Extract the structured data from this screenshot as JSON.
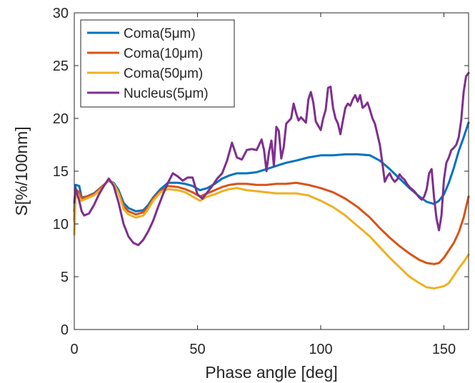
{
  "chart_data": {
    "type": "line",
    "title": "",
    "xlabel": "Phase angle [deg]",
    "ylabel": "S[%/100nm]",
    "xlim": [
      0,
      160
    ],
    "ylim": [
      0,
      30
    ],
    "xticks": [
      0,
      50,
      100,
      150
    ],
    "yticks": [
      0,
      5,
      10,
      15,
      20,
      25,
      30
    ],
    "xtick_labels": [
      "0",
      "50",
      "100",
      "150"
    ],
    "ytick_labels": [
      "0",
      "5",
      "10",
      "15",
      "20",
      "25",
      "30"
    ],
    "grid": false,
    "legend_position": "top-left",
    "series": [
      {
        "name": "Coma(5μm)",
        "color": "#0072BD",
        "points": [
          [
            0,
            11.2
          ],
          [
            0.5,
            13.7
          ],
          [
            2,
            13.6
          ],
          [
            3,
            12.5
          ],
          [
            5,
            12.6
          ],
          [
            8,
            12.9
          ],
          [
            11,
            13.5
          ],
          [
            14,
            14.1
          ],
          [
            16,
            13.9
          ],
          [
            18,
            13.2
          ],
          [
            20,
            12.0
          ],
          [
            22,
            11.5
          ],
          [
            25,
            11.2
          ],
          [
            28,
            11.3
          ],
          [
            30,
            11.8
          ],
          [
            32,
            12.5
          ],
          [
            35,
            13.3
          ],
          [
            38,
            13.9
          ],
          [
            42,
            13.9
          ],
          [
            45,
            13.8
          ],
          [
            48,
            13.6
          ],
          [
            51,
            13.2
          ],
          [
            54,
            13.4
          ],
          [
            57,
            13.8
          ],
          [
            60,
            14.3
          ],
          [
            63,
            14.6
          ],
          [
            66,
            14.8
          ],
          [
            70,
            14.8
          ],
          [
            74,
            14.9
          ],
          [
            78,
            15.2
          ],
          [
            82,
            15.5
          ],
          [
            86,
            15.8
          ],
          [
            90,
            16.0
          ],
          [
            95,
            16.3
          ],
          [
            100,
            16.5
          ],
          [
            105,
            16.5
          ],
          [
            110,
            16.6
          ],
          [
            115,
            16.6
          ],
          [
            120,
            16.5
          ],
          [
            124,
            16.0
          ],
          [
            128,
            15.2
          ],
          [
            132,
            14.3
          ],
          [
            136,
            13.4
          ],
          [
            140,
            12.6
          ],
          [
            143,
            12.1
          ],
          [
            146,
            11.9
          ],
          [
            148,
            12.2
          ],
          [
            150,
            12.8
          ],
          [
            152,
            13.9
          ],
          [
            154,
            15.3
          ],
          [
            156,
            16.9
          ],
          [
            158,
            18.2
          ],
          [
            160,
            19.6
          ]
        ]
      },
      {
        "name": "Coma(10μm)",
        "color": "#D95319",
        "points": [
          [
            0,
            10.3
          ],
          [
            0.5,
            13.3
          ],
          [
            2,
            13.0
          ],
          [
            3,
            12.4
          ],
          [
            5,
            12.6
          ],
          [
            8,
            12.8
          ],
          [
            11,
            13.5
          ],
          [
            14,
            14.1
          ],
          [
            16,
            13.8
          ],
          [
            18,
            13.0
          ],
          [
            20,
            11.7
          ],
          [
            22,
            11.2
          ],
          [
            25,
            10.9
          ],
          [
            28,
            11.1
          ],
          [
            30,
            11.6
          ],
          [
            32,
            12.4
          ],
          [
            35,
            13.1
          ],
          [
            38,
            13.6
          ],
          [
            42,
            13.5
          ],
          [
            45,
            13.3
          ],
          [
            48,
            13.0
          ],
          [
            51,
            12.6
          ],
          [
            54,
            12.9
          ],
          [
            57,
            13.2
          ],
          [
            60,
            13.5
          ],
          [
            63,
            13.7
          ],
          [
            66,
            13.8
          ],
          [
            70,
            13.8
          ],
          [
            74,
            13.7
          ],
          [
            78,
            13.7
          ],
          [
            82,
            13.8
          ],
          [
            86,
            13.8
          ],
          [
            90,
            13.9
          ],
          [
            95,
            13.7
          ],
          [
            100,
            13.4
          ],
          [
            105,
            13.0
          ],
          [
            110,
            12.4
          ],
          [
            115,
            11.6
          ],
          [
            120,
            10.6
          ],
          [
            124,
            9.6
          ],
          [
            128,
            8.7
          ],
          [
            132,
            7.9
          ],
          [
            136,
            7.2
          ],
          [
            140,
            6.6
          ],
          [
            143,
            6.3
          ],
          [
            146,
            6.2
          ],
          [
            148,
            6.3
          ],
          [
            150,
            6.8
          ],
          [
            152,
            7.5
          ],
          [
            154,
            8.2
          ],
          [
            156,
            9.2
          ],
          [
            158,
            10.6
          ],
          [
            160,
            12.6
          ]
        ]
      },
      {
        "name": "Coma(50μm)",
        "color": "#EDB120",
        "points": [
          [
            0,
            9.0
          ],
          [
            0.5,
            12.6
          ],
          [
            2,
            12.5
          ],
          [
            3,
            12.2
          ],
          [
            5,
            12.4
          ],
          [
            8,
            12.7
          ],
          [
            11,
            13.3
          ],
          [
            14,
            14.2
          ],
          [
            16,
            13.8
          ],
          [
            18,
            12.9
          ],
          [
            20,
            11.4
          ],
          [
            22,
            10.9
          ],
          [
            25,
            10.6
          ],
          [
            28,
            10.8
          ],
          [
            30,
            11.4
          ],
          [
            32,
            12.2
          ],
          [
            35,
            13.0
          ],
          [
            38,
            13.3
          ],
          [
            42,
            13.2
          ],
          [
            45,
            13.0
          ],
          [
            48,
            12.6
          ],
          [
            51,
            12.2
          ],
          [
            54,
            12.6
          ],
          [
            57,
            12.8
          ],
          [
            60,
            13.1
          ],
          [
            63,
            13.3
          ],
          [
            66,
            13.4
          ],
          [
            70,
            13.2
          ],
          [
            74,
            13.1
          ],
          [
            78,
            13.0
          ],
          [
            82,
            12.9
          ],
          [
            86,
            12.9
          ],
          [
            90,
            12.9
          ],
          [
            95,
            12.7
          ],
          [
            100,
            12.2
          ],
          [
            105,
            11.6
          ],
          [
            110,
            10.8
          ],
          [
            115,
            9.8
          ],
          [
            120,
            8.8
          ],
          [
            124,
            7.8
          ],
          [
            128,
            6.8
          ],
          [
            132,
            5.9
          ],
          [
            136,
            5.0
          ],
          [
            140,
            4.4
          ],
          [
            143,
            4.0
          ],
          [
            146,
            3.9
          ],
          [
            148,
            4.0
          ],
          [
            150,
            4.1
          ],
          [
            152,
            4.4
          ],
          [
            154,
            5.1
          ],
          [
            156,
            5.8
          ],
          [
            158,
            6.4
          ],
          [
            160,
            7.1
          ]
        ]
      },
      {
        "name": "Nucleus(5μm)",
        "color": "#7E2F8E",
        "points": [
          [
            0,
            12.0
          ],
          [
            0.5,
            13.4
          ],
          [
            2,
            12.2
          ],
          [
            3,
            11.2
          ],
          [
            4,
            10.8
          ],
          [
            6,
            11.0
          ],
          [
            8,
            11.8
          ],
          [
            10,
            12.8
          ],
          [
            12,
            13.6
          ],
          [
            14,
            14.3
          ],
          [
            16,
            13.6
          ],
          [
            18,
            12.0
          ],
          [
            20,
            10.0
          ],
          [
            22,
            8.8
          ],
          [
            24,
            8.2
          ],
          [
            26,
            8.0
          ],
          [
            28,
            8.5
          ],
          [
            30,
            9.3
          ],
          [
            32,
            10.3
          ],
          [
            34,
            11.6
          ],
          [
            36,
            12.8
          ],
          [
            38,
            13.9
          ],
          [
            40,
            14.8
          ],
          [
            42,
            14.5
          ],
          [
            44,
            14.1
          ],
          [
            46,
            14.4
          ],
          [
            48,
            14.4
          ],
          [
            50,
            12.8
          ],
          [
            52,
            12.4
          ],
          [
            54,
            13.0
          ],
          [
            56,
            13.6
          ],
          [
            58,
            14.3
          ],
          [
            60,
            14.8
          ],
          [
            62,
            16.0
          ],
          [
            64,
            17.7
          ],
          [
            66,
            16.3
          ],
          [
            68,
            16.1
          ],
          [
            70,
            17.0
          ],
          [
            72,
            17.1
          ],
          [
            74,
            17.0
          ],
          [
            76,
            18.0
          ],
          [
            77,
            17.0
          ],
          [
            78,
            15.0
          ],
          [
            79,
            16.8
          ],
          [
            80,
            17.9
          ],
          [
            81,
            15.5
          ],
          [
            82,
            19.2
          ],
          [
            83,
            18.8
          ],
          [
            84,
            16.2
          ],
          [
            85,
            17.3
          ],
          [
            86,
            19.5
          ],
          [
            88,
            20.0
          ],
          [
            89,
            21.4
          ],
          [
            90,
            20.5
          ],
          [
            91,
            19.8
          ],
          [
            92,
            20.1
          ],
          [
            94,
            19.6
          ],
          [
            95,
            21.8
          ],
          [
            96,
            22.5
          ],
          [
            97,
            21.5
          ],
          [
            98,
            19.7
          ],
          [
            100,
            18.9
          ],
          [
            101,
            20.0
          ],
          [
            102,
            20.8
          ],
          [
            103,
            22.9
          ],
          [
            104,
            23.0
          ],
          [
            105,
            21.0
          ],
          [
            106,
            20.0
          ],
          [
            107,
            19.5
          ],
          [
            108,
            18.5
          ],
          [
            109,
            19.8
          ],
          [
            110,
            21.0
          ],
          [
            111,
            21.4
          ],
          [
            112,
            21.2
          ],
          [
            113,
            21.8
          ],
          [
            114,
            22.2
          ],
          [
            115,
            21.6
          ],
          [
            116,
            22.2
          ],
          [
            117,
            21.0
          ],
          [
            118,
            21.2
          ],
          [
            119,
            21.5
          ],
          [
            120,
            20.8
          ],
          [
            121,
            20.0
          ],
          [
            122,
            19.5
          ],
          [
            124,
            17.5
          ],
          [
            125,
            15.8
          ],
          [
            126,
            14.0
          ],
          [
            127,
            14.5
          ],
          [
            128,
            14.8
          ],
          [
            129,
            14.3
          ],
          [
            130,
            14.0
          ],
          [
            131,
            14.2
          ],
          [
            132,
            14.7
          ],
          [
            133,
            14.4
          ],
          [
            134,
            14.2
          ],
          [
            135,
            13.8
          ],
          [
            136,
            13.5
          ],
          [
            137,
            13.3
          ],
          [
            138,
            13.1
          ],
          [
            139,
            12.8
          ],
          [
            140,
            12.5
          ],
          [
            141,
            12.3
          ],
          [
            142,
            12.6
          ],
          [
            143,
            13.3
          ],
          [
            144,
            14.8
          ],
          [
            145,
            15.2
          ],
          [
            146,
            12.5
          ],
          [
            147,
            10.5
          ],
          [
            148,
            9.4
          ],
          [
            149,
            10.8
          ],
          [
            150,
            14.2
          ],
          [
            151,
            15.8
          ],
          [
            152,
            16.3
          ],
          [
            153,
            17.0
          ],
          [
            154,
            17.2
          ],
          [
            155,
            17.5
          ],
          [
            156,
            18.2
          ],
          [
            157,
            19.8
          ],
          [
            158,
            22.5
          ],
          [
            159,
            24.0
          ],
          [
            160,
            24.3
          ]
        ]
      }
    ]
  }
}
